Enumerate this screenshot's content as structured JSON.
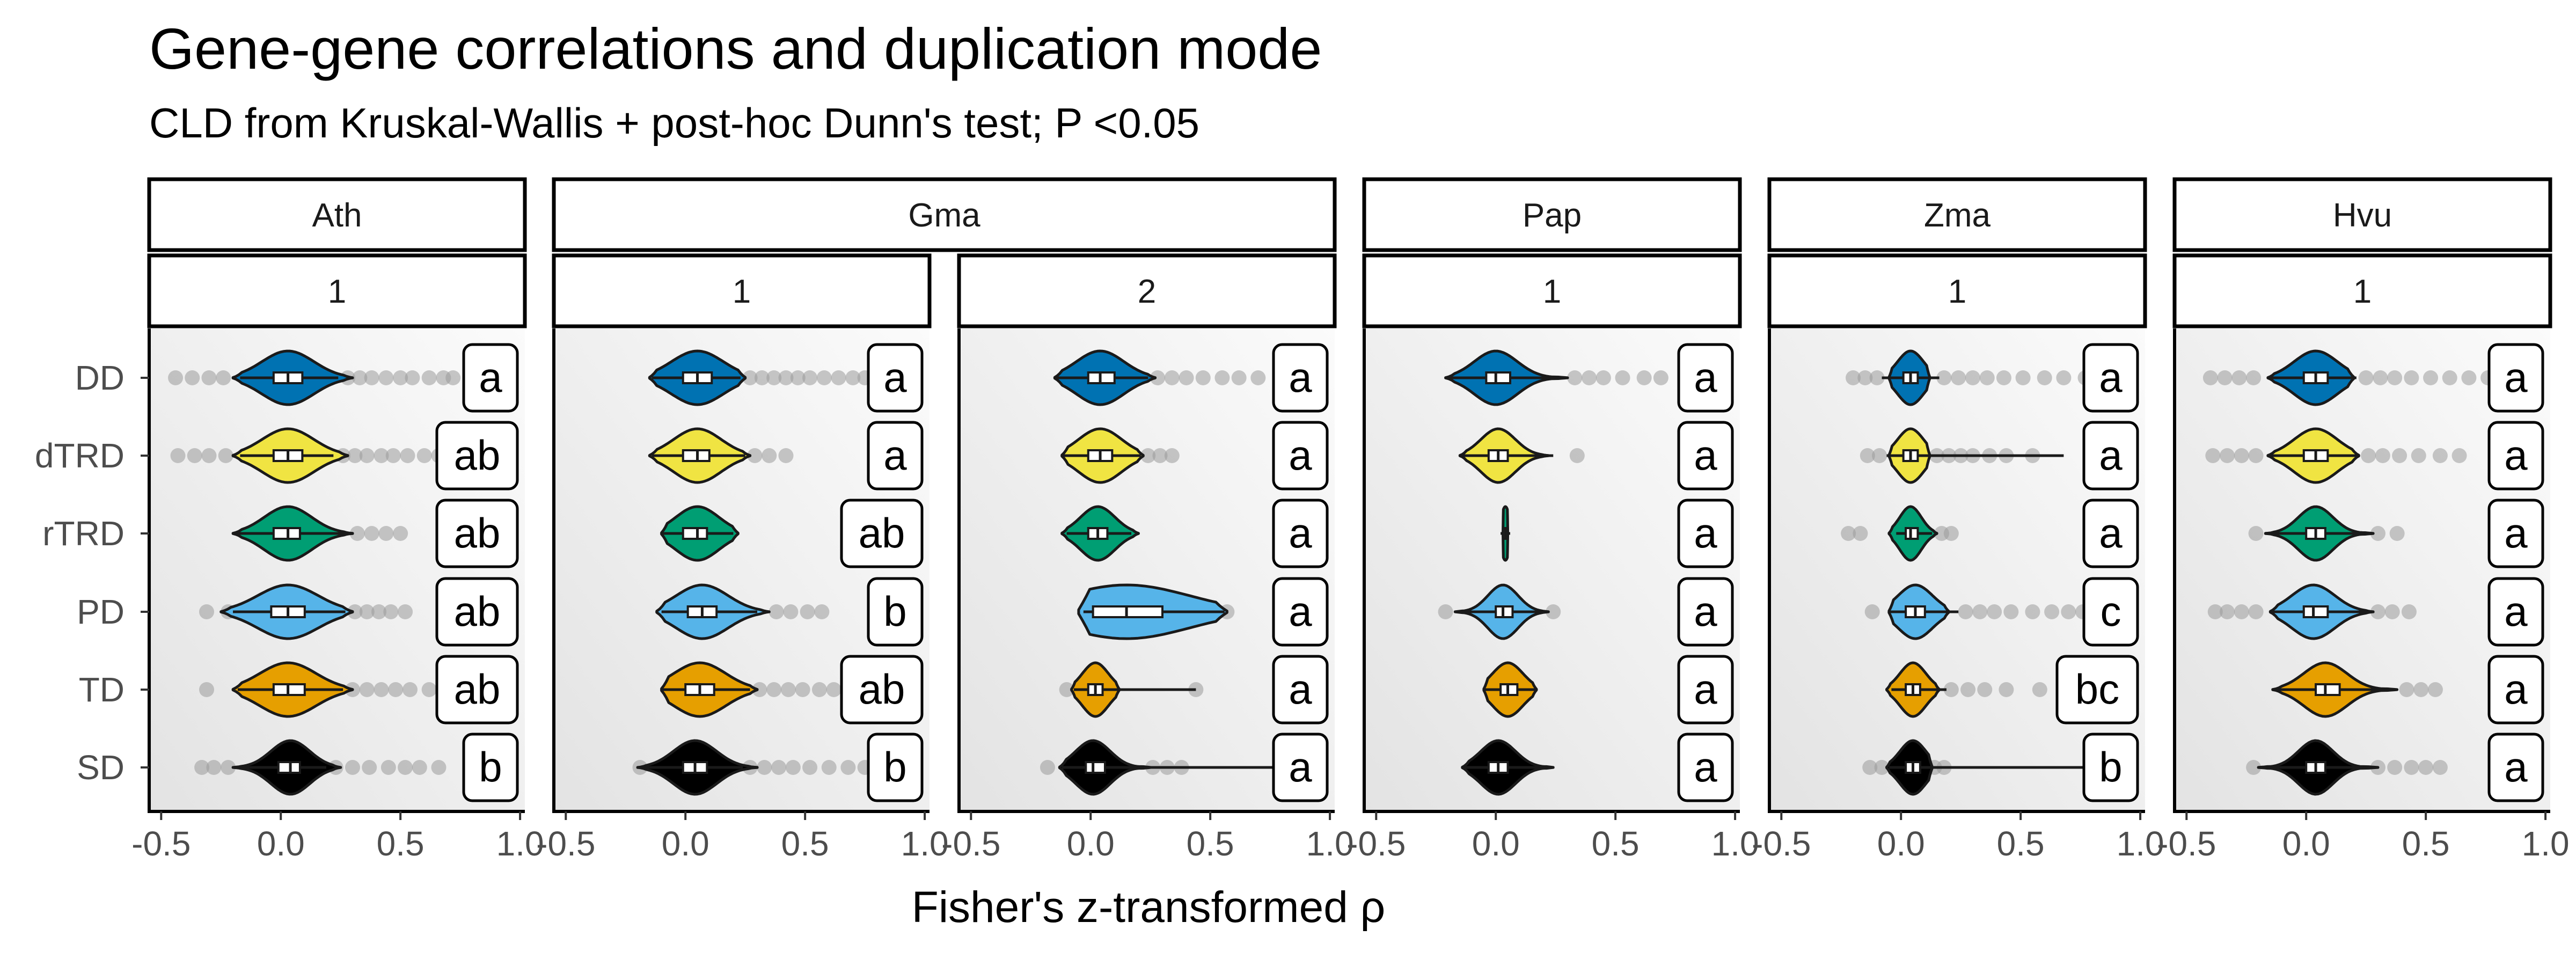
{
  "chart_data": {
    "type": "violin",
    "title": "Gene-gene correlations and duplication mode",
    "subtitle": "CLD from Kruskal-Wallis + post-hoc Dunn's test; P <0.05",
    "xlabel": "Fisher's z-transformed ρ",
    "ylabel": "",
    "xlim": [
      -0.55,
      1.02
    ],
    "xticks": [
      -0.5,
      0.0,
      0.5,
      1.0
    ],
    "xtick_labels": [
      "-0.5",
      "0.0",
      "0.5",
      "1.0"
    ],
    "categories": [
      "DD",
      "dTRD",
      "rTRD",
      "PD",
      "TD",
      "SD"
    ],
    "category_colors": {
      "DD": "#0072B2",
      "dTRD": "#F0E442",
      "rTRD": "#009E73",
      "PD": "#56B4E9",
      "TD": "#E69F00",
      "SD": "#000000"
    },
    "grid": false,
    "legend": "none",
    "panels": [
      {
        "species": "Ath",
        "group": "1",
        "series": [
          {
            "category": "DD",
            "median": 0.03,
            "q1": -0.03,
            "q3": 0.09,
            "whisker": [
              -0.17,
              0.24
            ],
            "density_range": [
              -0.2,
              0.3
            ],
            "outliers": [
              -0.44,
              -0.37,
              -0.3,
              -0.24,
              0.28,
              0.33,
              0.38,
              0.44,
              0.5,
              0.55,
              0.62,
              0.68,
              0.72
            ],
            "cld": "a"
          },
          {
            "category": "dTRD",
            "median": 0.03,
            "q1": -0.03,
            "q3": 0.09,
            "whisker": [
              -0.17,
              0.22
            ],
            "density_range": [
              -0.2,
              0.28
            ],
            "outliers": [
              -0.43,
              -0.36,
              -0.3,
              -0.23,
              0.26,
              0.31,
              0.36,
              0.42,
              0.47,
              0.53,
              0.6,
              0.66
            ],
            "cld": "ab"
          },
          {
            "category": "rTRD",
            "median": 0.03,
            "q1": -0.03,
            "q3": 0.08,
            "whisker": [
              -0.2,
              0.27
            ],
            "density_range": [
              -0.2,
              0.3
            ],
            "outliers": [
              0.32,
              0.38,
              0.44,
              0.5
            ],
            "cld": "ab"
          },
          {
            "category": "PD",
            "median": 0.03,
            "q1": -0.04,
            "q3": 0.1,
            "whisker": [
              -0.2,
              0.27
            ],
            "density_range": [
              -0.25,
              0.3
            ],
            "outliers": [
              -0.31,
              -0.22,
              0.31,
              0.36,
              0.41,
              0.46,
              0.52,
              0.68
            ],
            "cld": "ab"
          },
          {
            "category": "TD",
            "median": 0.03,
            "q1": -0.03,
            "q3": 0.1,
            "whisker": [
              -0.18,
              0.26
            ],
            "density_range": [
              -0.2,
              0.3
            ],
            "outliers": [
              -0.31,
              0.3,
              0.36,
              0.42,
              0.48,
              0.54,
              0.62,
              0.7
            ],
            "cld": "ab"
          },
          {
            "category": "SD",
            "median": 0.04,
            "q1": -0.01,
            "q3": 0.08,
            "whisker": [
              -0.18,
              0.19
            ],
            "density_range": [
              -0.2,
              0.25
            ],
            "outliers": [
              -0.33,
              -0.28,
              -0.22,
              0.23,
              0.3,
              0.37,
              0.45,
              0.52,
              0.58,
              0.66
            ],
            "cld": "b"
          }
        ]
      },
      {
        "species": "Gma",
        "group": "1",
        "series": [
          {
            "category": "DD",
            "median": 0.05,
            "q1": -0.01,
            "q3": 0.11,
            "whisker": [
              -0.14,
              0.23
            ],
            "density_range": [
              -0.15,
              0.25
            ],
            "outliers": [
              0.27,
              0.32,
              0.37,
              0.42,
              0.47,
              0.52,
              0.58,
              0.64,
              0.7,
              0.75
            ],
            "cld": "a"
          },
          {
            "category": "dTRD",
            "median": 0.05,
            "q1": -0.01,
            "q3": 0.1,
            "whisker": [
              -0.14,
              0.25
            ],
            "density_range": [
              -0.15,
              0.27
            ],
            "outliers": [
              0.29,
              0.35,
              0.42
            ],
            "cld": "a"
          },
          {
            "category": "rTRD",
            "median": 0.05,
            "q1": -0.01,
            "q3": 0.09,
            "whisker": [
              -0.1,
              0.2
            ],
            "density_range": [
              -0.1,
              0.22
            ],
            "outliers": [],
            "cld": "ab"
          },
          {
            "category": "PD",
            "median": 0.07,
            "q1": 0.01,
            "q3": 0.13,
            "whisker": [
              -0.1,
              0.3
            ],
            "density_range": [
              -0.12,
              0.35
            ],
            "outliers": [
              0.38,
              0.44,
              0.51,
              0.57
            ],
            "cld": "b"
          },
          {
            "category": "TD",
            "median": 0.06,
            "q1": 0.0,
            "q3": 0.12,
            "whisker": [
              -0.1,
              0.27
            ],
            "density_range": [
              -0.1,
              0.3
            ],
            "outliers": [
              0.31,
              0.37,
              0.43,
              0.49,
              0.56,
              0.62,
              0.69
            ],
            "cld": "ab"
          },
          {
            "category": "SD",
            "median": 0.04,
            "q1": -0.01,
            "q3": 0.09,
            "whisker": [
              -0.17,
              0.24
            ],
            "density_range": [
              -0.2,
              0.3
            ],
            "outliers": [
              -0.19,
              0.27,
              0.33,
              0.39,
              0.45,
              0.52,
              0.6,
              0.68,
              0.75
            ],
            "cld": "b"
          }
        ]
      },
      {
        "species": "Gma",
        "group": "2",
        "series": [
          {
            "category": "DD",
            "median": 0.04,
            "q1": -0.01,
            "q3": 0.1,
            "whisker": [
              -0.15,
              0.24
            ],
            "density_range": [
              -0.15,
              0.27
            ],
            "outliers": [
              0.28,
              0.34,
              0.4,
              0.47,
              0.55,
              0.62,
              0.7
            ],
            "cld": "a"
          },
          {
            "category": "dTRD",
            "median": 0.04,
            "q1": -0.01,
            "q3": 0.09,
            "whisker": [
              -0.12,
              0.21
            ],
            "density_range": [
              -0.12,
              0.22
            ],
            "outliers": [
              0.24,
              0.29,
              0.34
            ],
            "cld": "a"
          },
          {
            "category": "rTRD",
            "median": 0.03,
            "q1": -0.01,
            "q3": 0.07,
            "whisker": [
              -0.1,
              0.17
            ],
            "density_range": [
              -0.12,
              0.2
            ],
            "outliers": [],
            "cld": "a"
          },
          {
            "category": "PD",
            "median": 0.15,
            "q1": 0.01,
            "q3": 0.3,
            "whisker": [
              -0.03,
              0.56
            ],
            "density_range": [
              -0.05,
              0.57
            ],
            "outliers": [
              0.57
            ],
            "cld": "a"
          },
          {
            "category": "TD",
            "median": 0.02,
            "q1": -0.01,
            "q3": 0.05,
            "whisker": [
              -0.07,
              0.44
            ],
            "density_range": [
              -0.08,
              0.12
            ],
            "outliers": [
              -0.1,
              0.44
            ],
            "cld": "a"
          },
          {
            "category": "SD",
            "median": 0.01,
            "q1": -0.02,
            "q3": 0.06,
            "whisker": [
              -0.12,
              0.78
            ],
            "density_range": [
              -0.13,
              0.25
            ],
            "outliers": [
              -0.18,
              0.26,
              0.32,
              0.38
            ],
            "cld": "a"
          }
        ]
      },
      {
        "species": "Pap",
        "group": "1",
        "series": [
          {
            "category": "DD",
            "median": 0.0,
            "q1": -0.04,
            "q3": 0.06,
            "whisker": [
              -0.21,
              0.3
            ],
            "density_range": [
              -0.21,
              0.3
            ],
            "outliers": [
              0.33,
              0.39,
              0.45,
              0.53,
              0.62,
              0.69
            ],
            "cld": "a"
          },
          {
            "category": "dTRD",
            "median": 0.01,
            "q1": -0.03,
            "q3": 0.05,
            "whisker": [
              -0.15,
              0.24
            ],
            "density_range": [
              -0.15,
              0.22
            ],
            "outliers": [
              0.34
            ],
            "cld": "a"
          },
          {
            "category": "rTRD",
            "median": 0.04,
            "q1": 0.03,
            "q3": 0.05,
            "whisker": [
              0.02,
              0.06
            ],
            "density_range": [
              0.03,
              0.05
            ],
            "outliers": [],
            "cld": "a"
          },
          {
            "category": "PD",
            "median": 0.03,
            "q1": 0.0,
            "q3": 0.07,
            "whisker": [
              -0.17,
              0.2
            ],
            "density_range": [
              -0.17,
              0.22
            ],
            "outliers": [
              -0.21,
              0.24
            ],
            "cld": "a"
          },
          {
            "category": "TD",
            "median": 0.05,
            "q1": 0.02,
            "q3": 0.09,
            "whisker": [
              -0.05,
              0.17
            ],
            "density_range": [
              -0.05,
              0.17
            ],
            "outliers": [],
            "cld": "a"
          },
          {
            "category": "SD",
            "median": 0.01,
            "q1": -0.03,
            "q3": 0.05,
            "whisker": [
              -0.14,
              0.2
            ],
            "density_range": [
              -0.14,
              0.24
            ],
            "outliers": [],
            "cld": "a"
          }
        ]
      },
      {
        "species": "Zma",
        "group": "1",
        "series": [
          {
            "category": "DD",
            "median": 0.04,
            "q1": 0.01,
            "q3": 0.07,
            "whisker": [
              -0.08,
              0.16
            ],
            "density_range": [
              -0.05,
              0.12
            ],
            "outliers": [
              -0.2,
              -0.15,
              -0.1,
              0.18,
              0.24,
              0.3,
              0.36,
              0.43,
              0.51,
              0.6,
              0.68,
              0.77
            ],
            "cld": "a"
          },
          {
            "category": "dTRD",
            "median": 0.04,
            "q1": 0.01,
            "q3": 0.07,
            "whisker": [
              -0.06,
              0.68
            ],
            "density_range": [
              -0.05,
              0.12
            ],
            "outliers": [
              -0.14,
              -0.09,
              0.15,
              0.2,
              0.25,
              0.3,
              0.37,
              0.44,
              0.55
            ],
            "cld": "a"
          },
          {
            "category": "rTRD",
            "median": 0.04,
            "q1": 0.02,
            "q3": 0.07,
            "whisker": [
              -0.02,
              0.13
            ],
            "density_range": [
              -0.05,
              0.15
            ],
            "outliers": [
              -0.22,
              -0.17,
              0.17,
              0.21
            ],
            "cld": "a"
          },
          {
            "category": "PD",
            "median": 0.06,
            "q1": 0.02,
            "q3": 0.1,
            "whisker": [
              -0.05,
              0.24
            ],
            "density_range": [
              -0.05,
              0.2
            ],
            "outliers": [
              -0.12,
              0.27,
              0.33,
              0.39,
              0.46,
              0.55,
              0.63,
              0.7,
              0.76
            ],
            "cld": "c"
          },
          {
            "category": "TD",
            "median": 0.05,
            "q1": 0.02,
            "q3": 0.08,
            "whisker": [
              -0.04,
              0.19
            ],
            "density_range": [
              -0.06,
              0.16
            ],
            "outliers": [
              0.21,
              0.28,
              0.35,
              0.44,
              0.58,
              0.68
            ],
            "cld": "bc"
          },
          {
            "category": "SD",
            "median": 0.05,
            "q1": 0.02,
            "q3": 0.08,
            "whisker": [
              -0.05,
              0.76
            ],
            "density_range": [
              -0.06,
              0.13
            ],
            "outliers": [
              -0.13,
              -0.08,
              0.14,
              0.18
            ],
            "cld": "b"
          }
        ]
      },
      {
        "species": "Hvu",
        "group": "1",
        "series": [
          {
            "category": "DD",
            "median": 0.04,
            "q1": -0.01,
            "q3": 0.09,
            "whisker": [
              -0.16,
              0.21
            ],
            "density_range": [
              -0.16,
              0.2
            ],
            "outliers": [
              -0.4,
              -0.34,
              -0.28,
              -0.22,
              0.25,
              0.31,
              0.37,
              0.44,
              0.52,
              0.6,
              0.68,
              0.76
            ],
            "cld": "a"
          },
          {
            "category": "dTRD",
            "median": 0.04,
            "q1": -0.01,
            "q3": 0.09,
            "whisker": [
              -0.16,
              0.22
            ],
            "density_range": [
              -0.16,
              0.22
            ],
            "outliers": [
              -0.39,
              -0.33,
              -0.27,
              -0.21,
              0.26,
              0.32,
              0.39,
              0.47,
              0.56,
              0.64
            ],
            "cld": "a"
          },
          {
            "category": "rTRD",
            "median": 0.04,
            "q1": 0.0,
            "q3": 0.08,
            "whisker": [
              -0.15,
              0.26
            ],
            "density_range": [
              -0.17,
              0.28
            ],
            "outliers": [
              -0.21,
              0.3,
              0.38
            ],
            "cld": "a"
          },
          {
            "category": "PD",
            "median": 0.03,
            "q1": -0.01,
            "q3": 0.09,
            "whisker": [
              -0.15,
              0.26
            ],
            "density_range": [
              -0.15,
              0.28
            ],
            "outliers": [
              -0.38,
              -0.33,
              -0.27,
              -0.21,
              0.3,
              0.36,
              0.43
            ],
            "cld": "a"
          },
          {
            "category": "TD",
            "median": 0.08,
            "q1": 0.04,
            "q3": 0.14,
            "whisker": [
              -0.14,
              0.38
            ],
            "density_range": [
              -0.14,
              0.38
            ],
            "outliers": [
              0.42,
              0.48,
              0.54
            ],
            "cld": "a"
          },
          {
            "category": "SD",
            "median": 0.04,
            "q1": 0.0,
            "q3": 0.08,
            "whisker": [
              -0.16,
              0.25
            ],
            "density_range": [
              -0.2,
              0.3
            ],
            "outliers": [
              -0.22,
              0.3,
              0.37,
              0.44,
              0.5,
              0.56
            ],
            "cld": "a"
          }
        ]
      }
    ]
  }
}
